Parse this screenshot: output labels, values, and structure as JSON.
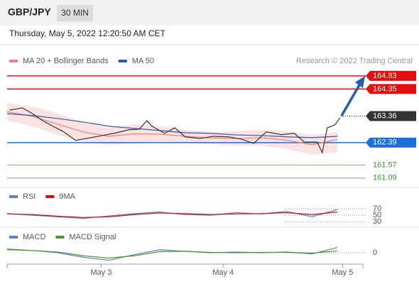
{
  "header": {
    "symbol": "GBP/JPY",
    "interval": "30 MIN"
  },
  "timestamp": "Thursday, May 5, 2022 12:20:50 AM CET",
  "chart_data": [
    {
      "type": "line",
      "legend": [
        {
          "name": "MA 20 + Bollinger Bands",
          "color": "#f08080"
        },
        {
          "name": "MA 50",
          "color": "#2a5caa"
        }
      ],
      "credit": "Research © 2022 Trading Central",
      "xlim": [
        0,
        140
      ],
      "ylim": [
        160.8,
        165.14
      ],
      "bands": {
        "color": "#fde2e2",
        "x": [
          0,
          10,
          20,
          30,
          40,
          50,
          60,
          70,
          80,
          90,
          100,
          110,
          120,
          130
        ],
        "upper": [
          163.84,
          163.71,
          163.45,
          163.14,
          162.93,
          163.06,
          162.99,
          162.86,
          162.78,
          162.8,
          162.86,
          162.8,
          162.67,
          162.78
        ],
        "lower": [
          163.19,
          162.99,
          162.67,
          162.41,
          162.31,
          162.36,
          162.41,
          162.39,
          162.34,
          162.28,
          162.28,
          162.15,
          161.95,
          162.03
        ]
      },
      "series": [
        {
          "color": "#f08080",
          "x": [
            0,
            10,
            20,
            30,
            40,
            50,
            60,
            70,
            80,
            90,
            100,
            110,
            120,
            130
          ],
          "values": [
            163.52,
            163.35,
            163.06,
            162.78,
            162.62,
            162.71,
            162.7,
            162.62,
            162.56,
            162.54,
            162.57,
            162.48,
            162.31,
            162.5
          ]
        },
        {
          "color": "#2a5caa",
          "x": [
            0,
            10,
            20,
            30,
            40,
            50,
            60,
            70,
            80,
            90,
            100,
            110,
            120,
            130
          ],
          "values": [
            163.45,
            163.38,
            163.27,
            163.14,
            162.99,
            162.91,
            162.83,
            162.75,
            162.73,
            162.67,
            162.65,
            162.6,
            162.57,
            162.62
          ]
        },
        {
          "color": "#333333",
          "x": [
            1,
            6,
            10,
            14,
            18,
            22,
            27,
            31,
            36,
            42,
            48,
            52,
            55,
            57,
            62,
            66,
            70,
            76,
            81,
            87,
            92,
            97,
            102,
            108,
            113,
            117,
            122,
            124,
            126,
            129,
            131
          ],
          "values": [
            163.58,
            163.66,
            163.45,
            163.19,
            162.99,
            162.8,
            162.47,
            162.54,
            162.62,
            162.73,
            162.86,
            162.88,
            163.19,
            162.99,
            162.73,
            162.93,
            162.6,
            162.54,
            162.62,
            162.6,
            162.52,
            162.36,
            162.78,
            162.68,
            162.73,
            162.41,
            162.41,
            162.02,
            162.93,
            163.04,
            163.3
          ]
        }
      ],
      "levels": [
        {
          "value": 164.83,
          "color": "#e01010",
          "style": "box"
        },
        {
          "value": 164.35,
          "color": "#e01010",
          "style": "box"
        },
        {
          "value": 163.36,
          "color": "#333333",
          "style": "current"
        },
        {
          "value": 162.39,
          "color": "#1a6fd8",
          "style": "box"
        },
        {
          "value": 161.57,
          "color": "#3a9a2a",
          "style": "text"
        },
        {
          "value": 161.09,
          "color": "#3a9a2a",
          "style": "text"
        }
      ]
    },
    {
      "type": "line",
      "legend": [
        {
          "name": "RSI",
          "color": "#5b7fd6"
        },
        {
          "name": "9MA",
          "color": "#d01010"
        }
      ],
      "xlim": [
        0,
        140
      ],
      "ylim": [
        15,
        90
      ],
      "yticks": [
        70,
        50,
        30
      ],
      "series": [
        {
          "color": "#5b7fd6",
          "x": [
            0,
            10,
            20,
            30,
            40,
            50,
            60,
            70,
            80,
            90,
            100,
            110,
            120,
            130
          ],
          "values": [
            55,
            50,
            45,
            40,
            48,
            55,
            60,
            52,
            50,
            58,
            54,
            62,
            45,
            68
          ]
        },
        {
          "color": "#d01010",
          "x": [
            0,
            10,
            20,
            30,
            40,
            50,
            60,
            70,
            80,
            90,
            100,
            110,
            120,
            130
          ],
          "values": [
            54,
            52,
            47,
            43,
            45,
            52,
            57,
            55,
            52,
            54,
            55,
            58,
            52,
            60
          ]
        }
      ]
    },
    {
      "type": "line",
      "legend": [
        {
          "name": "MACD",
          "color": "#5b7fd6"
        },
        {
          "name": "MACD Signal",
          "color": "#4a9a20"
        }
      ],
      "xlim": [
        0,
        140
      ],
      "ylim": [
        -0.3,
        0.3
      ],
      "yticks": [
        0
      ],
      "xticks": [
        {
          "value": 37,
          "label": "May 3"
        },
        {
          "value": 85,
          "label": "May 4"
        },
        {
          "value": 132,
          "label": "May 5"
        }
      ],
      "series": [
        {
          "color": "#5b7fd6",
          "x": [
            0,
            10,
            20,
            30,
            40,
            50,
            60,
            70,
            80,
            90,
            100,
            110,
            120,
            130
          ],
          "values": [
            0.1,
            0.06,
            0,
            -0.12,
            -0.2,
            -0.05,
            0.08,
            0.04,
            0,
            0.02,
            0,
            0.02,
            -0.03,
            0.14
          ]
        },
        {
          "color": "#4a9a20",
          "x": [
            0,
            10,
            20,
            30,
            40,
            50,
            60,
            70,
            80,
            90,
            100,
            110,
            120,
            130
          ],
          "values": [
            0.08,
            0.06,
            0.02,
            -0.08,
            -0.14,
            -0.08,
            0.03,
            0.04,
            0.01,
            0,
            0.01,
            0.01,
            -0.01,
            0.05
          ]
        }
      ]
    }
  ]
}
